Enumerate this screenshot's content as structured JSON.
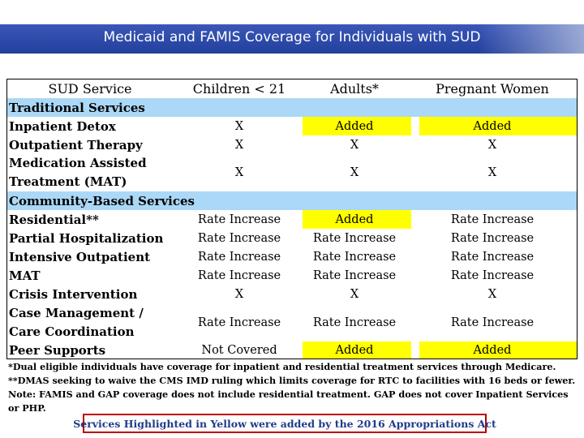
{
  "title": "Medicaid and FAMIS Coverage for Individuals with SUD",
  "colors": {
    "banner": "#2c49a8",
    "section_band": "#abd8f6",
    "highlight": "#ffff00",
    "callout_border": "#c00000",
    "callout_text": "#1f3c88"
  },
  "table": {
    "headers": [
      "SUD Service",
      "Children < 21",
      "Adults*",
      "Pregnant Women"
    ],
    "sections": {
      "traditional": "Traditional Services",
      "community": "Community-Based Services"
    },
    "rows": {
      "inpatient_detox": {
        "service": "Inpatient Detox",
        "children": "X",
        "adults": "Added",
        "pregnant": "Added"
      },
      "outpatient_therapy": {
        "service": "Outpatient Therapy",
        "children": "X",
        "adults": "X",
        "pregnant": "X"
      },
      "mat_treatment": {
        "service_line1": "Medication Assisted",
        "service_line2": "Treatment (MAT)",
        "children": "X",
        "adults": "X",
        "pregnant": "X"
      },
      "residential": {
        "service": "Residential**",
        "children": "Rate Increase",
        "adults": "Added",
        "pregnant": "Rate Increase"
      },
      "partial_hosp": {
        "service": "Partial Hospitalization",
        "children": "Rate Increase",
        "adults": "Rate Increase",
        "pregnant": "Rate Increase"
      },
      "intensive_outpatient": {
        "service": "Intensive Outpatient",
        "children": "Rate Increase",
        "adults": "Rate Increase",
        "pregnant": "Rate Increase"
      },
      "mat": {
        "service": "MAT",
        "children": "Rate Increase",
        "adults": "Rate Increase",
        "pregnant": "Rate Increase"
      },
      "crisis": {
        "service": "Crisis Intervention",
        "children": "X",
        "adults": "X",
        "pregnant": "X"
      },
      "case_mgmt": {
        "service_line1": "Case Management /",
        "service_line2": "Care Coordination",
        "children": "Rate Increase",
        "adults": "Rate Increase",
        "pregnant": "Rate Increase"
      },
      "peer": {
        "service": "Peer Supports",
        "children": "Not Covered",
        "adults": "Added",
        "pregnant": "Added"
      }
    }
  },
  "notes": {
    "dual": "*Dual eligible individuals have coverage for inpatient and residential treatment services through Medicare.",
    "dmas": "**DMAS seeking to waive the CMS IMD ruling which limits coverage for RTC to facilities with 16 beds or fewer.",
    "famis": "Note: FAMIS and GAP coverage does not include residential treatment. GAP does not cover Inpatient Services or PHP."
  },
  "callout": "Services Highlighted in Yellow were added by the 2016 Appropriations Act"
}
